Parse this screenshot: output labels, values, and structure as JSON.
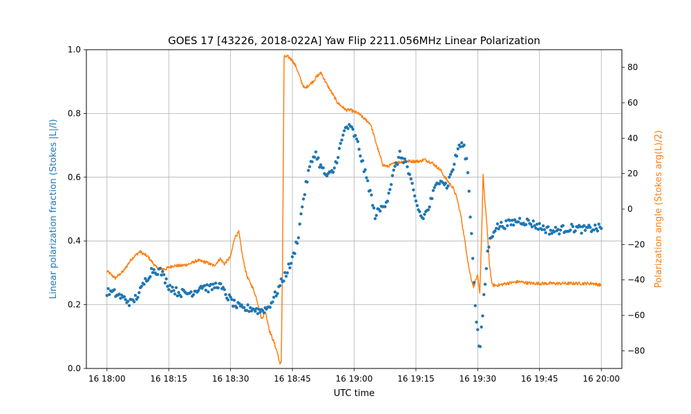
{
  "chart_data": {
    "type": "scatter+line",
    "title": "GOES 17 [43226, 2018-022A] Yaw Flip 2211.056MHz Linear Polarization",
    "xlabel": "UTC time",
    "ylabel_left": "Linear polarization fraction (Stokes |L|/I)",
    "ylabel_right": "Polarization angle (Stokes arg(L)/2)",
    "x_unit": "minutes after 16 18:00 UTC",
    "xlim": [
      -5,
      125
    ],
    "ylim_left": [
      0,
      1
    ],
    "ylim_right": [
      -90,
      90
    ],
    "x_ticks": [
      0,
      15,
      30,
      45,
      60,
      75,
      90,
      105,
      120
    ],
    "x_tick_labels": [
      "16 18:00",
      "16 18:15",
      "16 18:30",
      "16 18:45",
      "16 19:00",
      "16 19:15",
      "16 19:30",
      "16 19:45",
      "16 20:00"
    ],
    "y_ticks_left": [
      0.0,
      0.2,
      0.4,
      0.6,
      0.8,
      1.0
    ],
    "y_tick_labels_left": [
      "0.0",
      "0.2",
      "0.4",
      "0.6",
      "0.8",
      "1.0"
    ],
    "y_ticks_right": [
      -80,
      -60,
      -40,
      -20,
      0,
      20,
      40,
      60,
      80
    ],
    "y_tick_labels_right": [
      "−80",
      "−60",
      "−40",
      "−20",
      "0",
      "20",
      "40",
      "60",
      "80"
    ],
    "grid": true,
    "series": [
      {
        "name": "Linear polarization fraction",
        "axis": "left",
        "style": "markers",
        "color": "#1f77b4",
        "keypoints": [
          [
            0,
            0.24
          ],
          [
            2,
            0.235
          ],
          [
            4,
            0.22
          ],
          [
            6,
            0.205
          ],
          [
            8,
            0.24
          ],
          [
            9.5,
            0.28
          ],
          [
            11,
            0.31
          ],
          [
            13,
            0.305
          ],
          [
            15,
            0.26
          ],
          [
            17,
            0.24
          ],
          [
            19,
            0.235
          ],
          [
            21,
            0.24
          ],
          [
            23,
            0.26
          ],
          [
            25,
            0.25
          ],
          [
            27,
            0.265
          ],
          [
            29,
            0.23
          ],
          [
            31,
            0.2
          ],
          [
            33,
            0.185
          ],
          [
            35,
            0.19
          ],
          [
            37,
            0.18
          ],
          [
            39,
            0.19
          ],
          [
            40.5,
            0.22
          ],
          [
            42,
            0.26
          ],
          [
            43.5,
            0.3
          ],
          [
            45,
            0.34
          ],
          [
            46.5,
            0.42
          ],
          [
            47.5,
            0.52
          ],
          [
            49,
            0.62
          ],
          [
            50.5,
            0.68
          ],
          [
            52,
            0.63
          ],
          [
            53.5,
            0.6
          ],
          [
            55,
            0.62
          ],
          [
            56.5,
            0.69
          ],
          [
            58,
            0.76
          ],
          [
            59.5,
            0.75
          ],
          [
            61,
            0.7
          ],
          [
            62.5,
            0.62
          ],
          [
            64,
            0.55
          ],
          [
            65,
            0.48
          ],
          [
            66.5,
            0.5
          ],
          [
            68,
            0.53
          ],
          [
            69.5,
            0.61
          ],
          [
            71,
            0.67
          ],
          [
            72.5,
            0.65
          ],
          [
            73.5,
            0.6
          ],
          [
            75,
            0.52
          ],
          [
            76.5,
            0.47
          ],
          [
            78,
            0.5
          ],
          [
            79.5,
            0.56
          ],
          [
            81,
            0.6
          ],
          [
            82.5,
            0.57
          ],
          [
            84,
            0.63
          ],
          [
            85.5,
            0.7
          ],
          [
            86.5,
            0.7
          ],
          [
            87.5,
            0.64
          ],
          [
            88.5,
            0.42
          ],
          [
            89.5,
            0.18
          ],
          [
            90.5,
            0.05
          ],
          [
            91.5,
            0.22
          ],
          [
            92.5,
            0.38
          ],
          [
            94,
            0.44
          ],
          [
            96,
            0.45
          ],
          [
            98,
            0.455
          ],
          [
            100,
            0.465
          ],
          [
            102,
            0.46
          ],
          [
            104,
            0.45
          ],
          [
            106,
            0.44
          ],
          [
            108,
            0.43
          ],
          [
            110,
            0.435
          ],
          [
            112,
            0.44
          ],
          [
            114,
            0.44
          ],
          [
            116,
            0.435
          ],
          [
            118,
            0.44
          ],
          [
            120,
            0.44
          ]
        ],
        "noise": 0.013
      },
      {
        "name": "Polarization angle",
        "axis": "right",
        "style": "line",
        "color": "#ff7f0e",
        "keypoints": [
          [
            0,
            -35
          ],
          [
            2,
            -39
          ],
          [
            4,
            -35
          ],
          [
            6,
            -28
          ],
          [
            8,
            -24
          ],
          [
            10,
            -27
          ],
          [
            12,
            -33
          ],
          [
            14,
            -34
          ],
          [
            16,
            -32
          ],
          [
            18,
            -32
          ],
          [
            20,
            -31
          ],
          [
            22,
            -29
          ],
          [
            24,
            -30
          ],
          [
            26,
            -32
          ],
          [
            27.5,
            -28
          ],
          [
            28.5,
            -31
          ],
          [
            30,
            -27
          ],
          [
            31,
            -16
          ],
          [
            32,
            -13
          ],
          [
            33,
            -28
          ],
          [
            34,
            -38
          ],
          [
            35.5,
            -45
          ],
          [
            36.5,
            -52
          ],
          [
            37.5,
            -62
          ],
          [
            38.5,
            -58
          ],
          [
            39.5,
            -69
          ],
          [
            40.5,
            -75
          ],
          [
            41.5,
            -82
          ],
          [
            42,
            -88
          ],
          [
            42.3,
            -86
          ],
          [
            42.6,
            -35
          ],
          [
            43,
            86
          ],
          [
            44,
            86
          ],
          [
            45,
            84
          ],
          [
            46,
            80
          ],
          [
            47,
            73
          ],
          [
            48,
            68
          ],
          [
            50,
            72
          ],
          [
            51,
            75
          ],
          [
            52,
            77
          ],
          [
            53,
            72
          ],
          [
            54,
            68
          ],
          [
            55,
            64
          ],
          [
            56,
            60
          ],
          [
            57,
            58
          ],
          [
            58,
            56
          ],
          [
            59,
            56
          ],
          [
            60,
            55
          ],
          [
            61,
            54
          ],
          [
            62,
            52
          ],
          [
            63,
            50
          ],
          [
            64,
            48
          ],
          [
            65,
            40
          ],
          [
            66,
            32
          ],
          [
            67,
            25
          ],
          [
            68,
            24
          ],
          [
            70,
            26
          ],
          [
            72,
            27
          ],
          [
            74,
            27
          ],
          [
            76,
            27
          ],
          [
            77,
            28
          ],
          [
            78,
            27
          ],
          [
            79,
            26
          ],
          [
            80,
            24
          ],
          [
            81,
            22
          ],
          [
            82,
            18
          ],
          [
            83,
            15
          ],
          [
            84,
            12
          ],
          [
            85,
            6
          ],
          [
            86,
            -5
          ],
          [
            87,
            -20
          ],
          [
            88,
            -35
          ],
          [
            88.5,
            -40
          ],
          [
            89,
            -44
          ],
          [
            89.5,
            -40
          ],
          [
            90,
            -38
          ],
          [
            90.5,
            -48
          ],
          [
            91,
            -10
          ],
          [
            91.3,
            20
          ],
          [
            91.7,
            5
          ],
          [
            92.2,
            -8
          ],
          [
            92.8,
            -30
          ],
          [
            93.5,
            -43
          ],
          [
            95,
            -43
          ],
          [
            97,
            -42
          ],
          [
            100,
            -41
          ],
          [
            103,
            -42
          ],
          [
            106,
            -42
          ],
          [
            110,
            -42
          ],
          [
            114,
            -42
          ],
          [
            118,
            -42
          ],
          [
            120,
            -43
          ]
        ],
        "noise": 0.9
      }
    ]
  }
}
